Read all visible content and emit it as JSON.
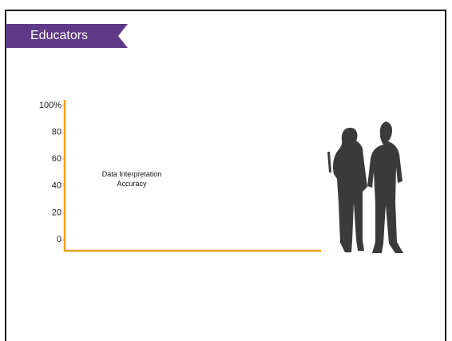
{
  "header": {
    "title": "Educators"
  },
  "chart_data": {
    "type": "bar",
    "annotation": "Data Interpretation Accuracy",
    "categories": [],
    "values": [],
    "color": "#f0a020",
    "ylim": [
      0,
      100
    ],
    "yticks": [
      0,
      20,
      40,
      60,
      80,
      {
        "value": 100,
        "label": "100%"
      }
    ],
    "grid": false
  }
}
